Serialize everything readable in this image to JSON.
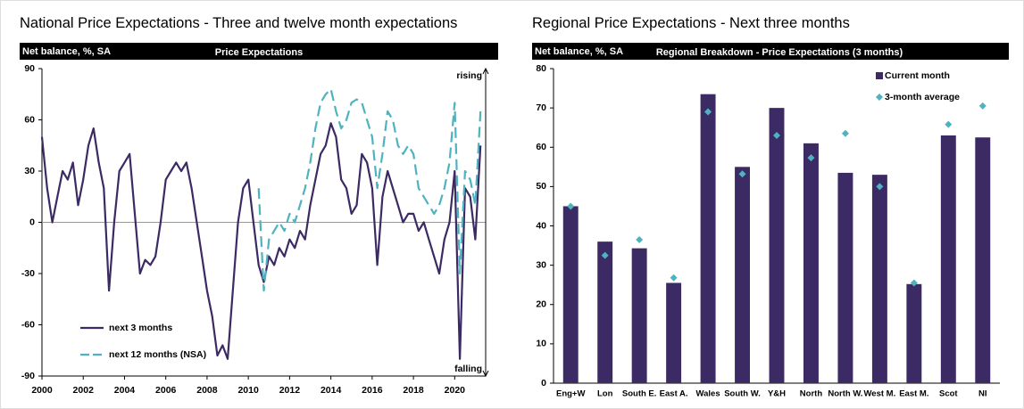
{
  "chart_data": [
    {
      "type": "line",
      "title": "National Price Expectations - Three and twelve month expectations",
      "ylabel": "Net balance, %, SA",
      "subtitle": "Price Expectations",
      "annotations": [
        "rising",
        "falling"
      ],
      "x": [
        2000,
        2000.25,
        2000.5,
        2000.75,
        2001,
        2001.25,
        2001.5,
        2001.75,
        2002,
        2002.25,
        2002.5,
        2002.75,
        2003,
        2003.25,
        2003.5,
        2003.75,
        2004,
        2004.25,
        2004.5,
        2004.75,
        2005,
        2005.25,
        2005.5,
        2005.75,
        2006,
        2006.25,
        2006.5,
        2006.75,
        2007,
        2007.25,
        2007.5,
        2007.75,
        2008,
        2008.25,
        2008.5,
        2008.75,
        2009,
        2009.25,
        2009.5,
        2009.75,
        2010,
        2010.25,
        2010.5,
        2010.75,
        2011,
        2011.25,
        2011.5,
        2011.75,
        2012,
        2012.25,
        2012.5,
        2012.75,
        2013,
        2013.25,
        2013.5,
        2013.75,
        2014,
        2014.25,
        2014.5,
        2014.75,
        2015,
        2015.25,
        2015.5,
        2015.75,
        2016,
        2016.25,
        2016.5,
        2016.75,
        2017,
        2017.25,
        2017.5,
        2017.75,
        2018,
        2018.25,
        2018.5,
        2018.75,
        2019,
        2019.25,
        2019.5,
        2019.75,
        2020,
        2020.25,
        2020.5,
        2020.75,
        2021,
        2021.25
      ],
      "series": [
        {
          "name": "next 3 months",
          "color": "#3b2a63",
          "dash": false,
          "values": [
            50,
            20,
            0,
            15,
            30,
            25,
            35,
            10,
            25,
            45,
            55,
            35,
            20,
            -40,
            0,
            30,
            35,
            40,
            5,
            -30,
            -22,
            -25,
            -20,
            0,
            25,
            30,
            35,
            30,
            35,
            20,
            0,
            -20,
            -40,
            -55,
            -78,
            -72,
            -80,
            -40,
            0,
            20,
            25,
            0,
            -25,
            -35,
            -20,
            -25,
            -15,
            -20,
            -10,
            -15,
            -5,
            -10,
            10,
            25,
            40,
            45,
            58,
            50,
            25,
            20,
            5,
            10,
            40,
            35,
            20,
            -25,
            15,
            30,
            20,
            10,
            0,
            5,
            5,
            -5,
            0,
            -10,
            -20,
            -30,
            -10,
            0,
            30,
            -80,
            20,
            15,
            -10,
            45
          ]
        },
        {
          "name": "next 12 months (NSA)",
          "color": "#4fb3bf",
          "dash": true,
          "values": [
            null,
            null,
            null,
            null,
            null,
            null,
            null,
            null,
            null,
            null,
            null,
            null,
            null,
            null,
            null,
            null,
            null,
            null,
            null,
            null,
            null,
            null,
            null,
            null,
            null,
            null,
            null,
            null,
            null,
            null,
            null,
            null,
            null,
            null,
            null,
            null,
            null,
            null,
            null,
            null,
            null,
            null,
            20,
            -40,
            -10,
            -5,
            0,
            -5,
            5,
            0,
            10,
            20,
            35,
            55,
            70,
            75,
            78,
            65,
            55,
            60,
            70,
            72,
            70,
            60,
            50,
            20,
            40,
            65,
            60,
            45,
            40,
            45,
            40,
            20,
            15,
            10,
            5,
            10,
            20,
            35,
            70,
            -30,
            30,
            25,
            10,
            65
          ]
        }
      ],
      "xlim": [
        2000,
        2021.5
      ],
      "xticks": [
        2000,
        2002,
        2004,
        2006,
        2008,
        2010,
        2012,
        2014,
        2016,
        2018,
        2020
      ],
      "ylim": [
        -90,
        90
      ],
      "yticks": [
        -90,
        -60,
        -30,
        0,
        30,
        60,
        90
      ],
      "legend": "bottom-left"
    },
    {
      "type": "bar",
      "title": "Regional Price Expectations - Next three months",
      "ylabel": "Net balance, %, SA",
      "subtitle": "Regional Breakdown - Price Expectations (3 months)",
      "categories": [
        "Eng+W",
        "Lon",
        "South E.",
        "East A.",
        "Wales",
        "South W.",
        "Y&H",
        "North",
        "North W.",
        "West M.",
        "East M.",
        "Scot",
        "NI"
      ],
      "series": [
        {
          "name": "Current month",
          "type": "bar",
          "color": "#3b2a63",
          "values": [
            45,
            36,
            34.3,
            25.5,
            73.5,
            55,
            70,
            61,
            53.5,
            53,
            25.2,
            63,
            62.5
          ]
        },
        {
          "name": "3-month average",
          "type": "scatter",
          "color": "#4fb3bf",
          "values": [
            45,
            32.5,
            36.5,
            26.8,
            69,
            53.2,
            63,
            57.3,
            63.5,
            50,
            25.5,
            65.8,
            70.5
          ]
        }
      ],
      "ylim": [
        0,
        80
      ],
      "yticks": [
        0,
        10,
        20,
        30,
        40,
        50,
        60,
        70,
        80
      ],
      "legend": "top-right"
    }
  ]
}
